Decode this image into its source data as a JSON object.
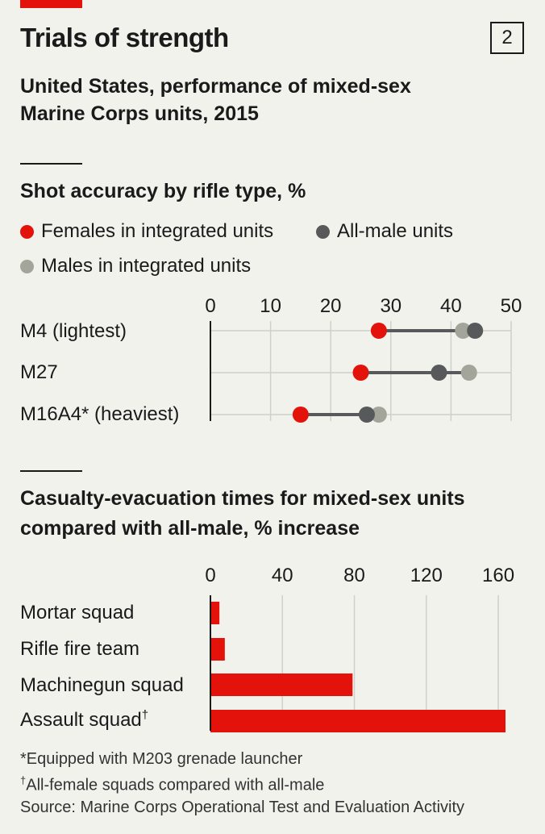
{
  "header": {
    "title": "Trials of strength",
    "chart_number": "2",
    "subtitle": "United States, performance of mixed-sex Marine Corps units, 2015"
  },
  "colors": {
    "accent": "#e3120b",
    "females": "#e3120b",
    "all_male": "#58595b",
    "males_integrated": "#a3a59a",
    "background": "#f2f2ed"
  },
  "footnotes": {
    "note1": "*Equipped with M203 grenade launcher",
    "note2_mark": "†",
    "note2": "All-female squads compared with all-male",
    "source": "Source: Marine Corps Operational Test and Evaluation Activity"
  },
  "chart_data": [
    {
      "type": "scatter",
      "title": "Shot accuracy by rifle type, %",
      "categories": [
        "M4 (lightest)",
        "M27",
        "M16A4* (heaviest)"
      ],
      "xlim": [
        0,
        50
      ],
      "xticks": [
        "0",
        "10",
        "20",
        "30",
        "40",
        "50"
      ],
      "grid": true,
      "legend_position": "top",
      "series": [
        {
          "name": "Females in integrated units",
          "color": "#e3120b",
          "values": [
            28,
            25,
            15
          ]
        },
        {
          "name": "All-male units",
          "color": "#58595b",
          "values": [
            44,
            38,
            26
          ]
        },
        {
          "name": "Males in integrated units",
          "color": "#a3a59a",
          "values": [
            42,
            43,
            28
          ]
        }
      ]
    },
    {
      "type": "bar",
      "title": "Casualty-evacuation times for mixed-sex units compared with all-male, % increase",
      "categories": [
        "Mortar squad",
        "Rifle fire team",
        "Machinegun squad",
        "Assault squad"
      ],
      "category_marks": [
        "",
        "",
        "",
        "†"
      ],
      "values": [
        5,
        8,
        79,
        164
      ],
      "xlim": [
        0,
        164
      ],
      "xticks": [
        "0",
        "40",
        "80",
        "120",
        "160"
      ],
      "grid": true,
      "color": "#e3120b"
    }
  ]
}
